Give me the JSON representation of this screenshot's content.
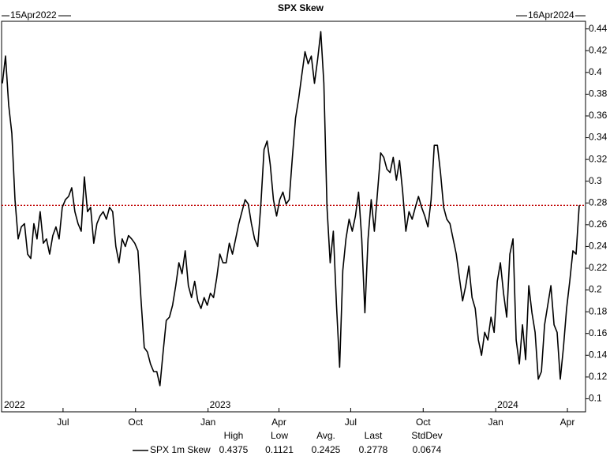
{
  "chart_data": {
    "type": "line",
    "title": "SPX Skew",
    "start_label": "15Apr2022",
    "end_label": "16Apr2024",
    "xlim": [
      "2022-04-14",
      "2024-04-24"
    ],
    "ylim": [
      0.088,
      0.447
    ],
    "yticks": [
      0.1,
      0.12,
      0.14,
      0.16,
      0.18,
      0.2,
      0.22,
      0.24,
      0.26,
      0.28,
      0.3,
      0.32,
      0.34,
      0.36,
      0.38,
      0.4,
      0.42,
      0.44
    ],
    "xticks": [
      {
        "value": "2022-07-01",
        "label": "Jul"
      },
      {
        "value": "2022-10-01",
        "label": "Oct"
      },
      {
        "value": "2023-01-01",
        "label": "Jan"
      },
      {
        "value": "2023-04-01",
        "label": "Apr"
      },
      {
        "value": "2023-07-01",
        "label": "Jul"
      },
      {
        "value": "2023-10-01",
        "label": "Oct"
      },
      {
        "value": "2024-01-01",
        "label": "Jan"
      },
      {
        "value": "2024-04-01",
        "label": "Apr"
      }
    ],
    "year_labels": [
      {
        "value": "2022-04-15",
        "label": "2022"
      },
      {
        "value": "2023-01-01",
        "label": "2023"
      },
      {
        "value": "2024-01-01",
        "label": "2024"
      }
    ],
    "hline": {
      "value": 0.2778,
      "color": "#c00000"
    },
    "x": [
      "2022-04-15",
      "2022-04-19",
      "2022-04-23",
      "2022-04-27",
      "2022-05-01",
      "2022-05-05",
      "2022-05-09",
      "2022-05-13",
      "2022-05-17",
      "2022-05-21",
      "2022-05-25",
      "2022-05-29",
      "2022-06-02",
      "2022-06-06",
      "2022-06-10",
      "2022-06-14",
      "2022-06-18",
      "2022-06-22",
      "2022-06-26",
      "2022-06-30",
      "2022-07-04",
      "2022-07-08",
      "2022-07-12",
      "2022-07-16",
      "2022-07-20",
      "2022-07-24",
      "2022-07-28",
      "2022-08-01",
      "2022-08-05",
      "2022-08-09",
      "2022-08-13",
      "2022-08-17",
      "2022-08-21",
      "2022-08-25",
      "2022-08-29",
      "2022-09-02",
      "2022-09-06",
      "2022-09-10",
      "2022-09-14",
      "2022-09-18",
      "2022-09-22",
      "2022-09-26",
      "2022-09-30",
      "2022-10-04",
      "2022-10-08",
      "2022-10-12",
      "2022-10-16",
      "2022-10-20",
      "2022-10-24",
      "2022-10-28",
      "2022-11-01",
      "2022-11-05",
      "2022-11-09",
      "2022-11-13",
      "2022-11-17",
      "2022-11-21",
      "2022-11-25",
      "2022-11-29",
      "2022-12-03",
      "2022-12-07",
      "2022-12-11",
      "2022-12-15",
      "2022-12-19",
      "2022-12-23",
      "2022-12-27",
      "2022-12-31",
      "2023-01-04",
      "2023-01-08",
      "2023-01-12",
      "2023-01-16",
      "2023-01-20",
      "2023-01-24",
      "2023-01-28",
      "2023-02-01",
      "2023-02-05",
      "2023-02-09",
      "2023-02-13",
      "2023-02-17",
      "2023-02-21",
      "2023-02-25",
      "2023-03-01",
      "2023-03-05",
      "2023-03-09",
      "2023-03-13",
      "2023-03-17",
      "2023-03-21",
      "2023-03-25",
      "2023-03-29",
      "2023-04-02",
      "2023-04-06",
      "2023-04-10",
      "2023-04-14",
      "2023-04-18",
      "2023-04-22",
      "2023-04-26",
      "2023-04-30",
      "2023-05-04",
      "2023-05-08",
      "2023-05-12",
      "2023-05-16",
      "2023-05-20",
      "2023-05-24",
      "2023-05-28",
      "2023-06-01",
      "2023-06-05",
      "2023-06-09",
      "2023-06-13",
      "2023-06-17",
      "2023-06-21",
      "2023-06-25",
      "2023-06-29",
      "2023-07-03",
      "2023-07-07",
      "2023-07-11",
      "2023-07-15",
      "2023-07-19",
      "2023-07-23",
      "2023-07-27",
      "2023-07-31",
      "2023-08-04",
      "2023-08-08",
      "2023-08-12",
      "2023-08-16",
      "2023-08-20",
      "2023-08-24",
      "2023-08-28",
      "2023-09-01",
      "2023-09-05",
      "2023-09-09",
      "2023-09-13",
      "2023-09-17",
      "2023-09-21",
      "2023-09-25",
      "2023-09-29",
      "2023-10-03",
      "2023-10-07",
      "2023-10-11",
      "2023-10-15",
      "2023-10-19",
      "2023-10-23",
      "2023-10-27",
      "2023-10-31",
      "2023-11-04",
      "2023-11-08",
      "2023-11-12",
      "2023-11-16",
      "2023-11-20",
      "2023-11-24",
      "2023-11-28",
      "2023-12-02",
      "2023-12-06",
      "2023-12-10",
      "2023-12-14",
      "2023-12-18",
      "2023-12-22",
      "2023-12-26",
      "2023-12-30",
      "2024-01-03",
      "2024-01-07",
      "2024-01-11",
      "2024-01-15",
      "2024-01-19",
      "2024-01-23",
      "2024-01-27",
      "2024-01-31",
      "2024-02-04",
      "2024-02-08",
      "2024-02-12",
      "2024-02-16",
      "2024-02-20",
      "2024-02-24",
      "2024-02-28",
      "2024-03-03",
      "2024-03-07",
      "2024-03-11",
      "2024-03-15",
      "2024-03-19",
      "2024-03-23",
      "2024-03-27",
      "2024-03-31",
      "2024-04-04",
      "2024-04-08",
      "2024-04-12",
      "2024-04-16"
    ],
    "series": [
      {
        "name": "SPX 1m Skew",
        "color": "#000000",
        "values": [
          0.39,
          0.415,
          0.37,
          0.344,
          0.283,
          0.247,
          0.258,
          0.261,
          0.233,
          0.229,
          0.261,
          0.247,
          0.272,
          0.243,
          0.247,
          0.233,
          0.25,
          0.258,
          0.247,
          0.276,
          0.283,
          0.286,
          0.294,
          0.272,
          0.261,
          0.254,
          0.304,
          0.272,
          0.276,
          0.243,
          0.261,
          0.268,
          0.272,
          0.265,
          0.276,
          0.272,
          0.24,
          0.225,
          0.247,
          0.24,
          0.25,
          0.247,
          0.243,
          0.236,
          0.19,
          0.147,
          0.143,
          0.132,
          0.125,
          0.125,
          0.1121,
          0.143,
          0.172,
          0.175,
          0.186,
          0.204,
          0.225,
          0.215,
          0.236,
          0.204,
          0.193,
          0.208,
          0.19,
          0.183,
          0.193,
          0.186,
          0.197,
          0.193,
          0.211,
          0.233,
          0.225,
          0.225,
          0.243,
          0.233,
          0.247,
          0.261,
          0.272,
          0.283,
          0.279,
          0.261,
          0.247,
          0.24,
          0.279,
          0.329,
          0.337,
          0.315,
          0.283,
          0.268,
          0.283,
          0.29,
          0.279,
          0.283,
          0.322,
          0.358,
          0.376,
          0.398,
          0.419,
          0.408,
          0.415,
          0.39,
          0.412,
          0.4375,
          0.39,
          0.276,
          0.225,
          0.254,
          0.186,
          0.129,
          0.218,
          0.247,
          0.265,
          0.254,
          0.268,
          0.29,
          0.247,
          0.179,
          0.247,
          0.283,
          0.254,
          0.29,
          0.326,
          0.322,
          0.311,
          0.308,
          0.322,
          0.301,
          0.319,
          0.29,
          0.254,
          0.272,
          0.265,
          0.276,
          0.286,
          0.276,
          0.268,
          0.258,
          0.283,
          0.333,
          0.333,
          0.308,
          0.276,
          0.265,
          0.261,
          0.247,
          0.233,
          0.211,
          0.19,
          0.204,
          0.222,
          0.193,
          0.183,
          0.154,
          0.14,
          0.161,
          0.154,
          0.175,
          0.161,
          0.208,
          0.225,
          0.197,
          0.175,
          0.233,
          0.247,
          0.154,
          0.132,
          0.168,
          0.136,
          0.204,
          0.179,
          0.161,
          0.118,
          0.125,
          0.168,
          0.186,
          0.204,
          0.168,
          0.161,
          0.118,
          0.147,
          0.183,
          0.208,
          0.236,
          0.233,
          0.2778
        ]
      }
    ],
    "stats": [
      {
        "label": "High",
        "value": 0.4375
      },
      {
        "label": "Low",
        "value": 0.1121
      },
      {
        "label": "Avg.",
        "value": 0.2425
      },
      {
        "label": "Last",
        "value": 0.2778
      },
      {
        "label": "StdDev",
        "value": 0.0674
      }
    ]
  }
}
